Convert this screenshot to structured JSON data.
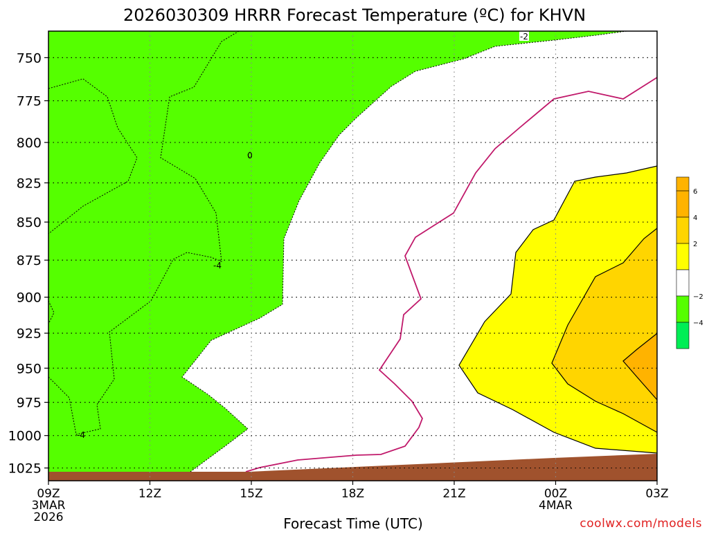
{
  "chart_data": {
    "type": "contour",
    "title": "2026030309 HRRR Forecast Temperature (ºC) for KHVN",
    "xlabel": "Forecast Time (UTC)",
    "ylabel": "",
    "y_log_pressure": true,
    "y_range": [
      1035,
      735
    ],
    "x_range_hours": [
      0,
      18
    ],
    "x_ticks": [
      {
        "hour": 0,
        "label": "09Z",
        "sub1": "3MAR",
        "sub2": "2026"
      },
      {
        "hour": 3,
        "label": "12Z",
        "sub1": "",
        "sub2": ""
      },
      {
        "hour": 6,
        "label": "15Z",
        "sub1": "",
        "sub2": ""
      },
      {
        "hour": 9,
        "label": "18Z",
        "sub1": "",
        "sub2": ""
      },
      {
        "hour": 12,
        "label": "21Z",
        "sub1": "",
        "sub2": ""
      },
      {
        "hour": 15,
        "label": "00Z",
        "sub1": "4MAR",
        "sub2": ""
      },
      {
        "hour": 18,
        "label": "03Z",
        "sub1": "",
        "sub2": ""
      }
    ],
    "y_ticks": [
      {
        "value": 750,
        "label": "750"
      },
      {
        "value": 775,
        "label": "775"
      },
      {
        "value": 800,
        "label": "800"
      },
      {
        "value": 825,
        "label": "825"
      },
      {
        "value": 850,
        "label": "850"
      },
      {
        "value": 875,
        "label": "875"
      },
      {
        "value": 900,
        "label": "900"
      },
      {
        "value": 925,
        "label": "925"
      },
      {
        "value": 950,
        "label": "950"
      },
      {
        "value": 975,
        "label": "975"
      },
      {
        "value": 1000,
        "label": "1000"
      },
      {
        "value": 1025,
        "label": "1025"
      }
    ],
    "grid": true,
    "contour_labels": [
      "-2",
      "0",
      "-4",
      "-4"
    ],
    "colorbar": {
      "levels": [
        {
          "label": "6",
          "color": "#ffb300"
        },
        {
          "label": "4",
          "color": "#ffd500"
        },
        {
          "label": "2",
          "color": "#ffff00"
        },
        {
          "label": "",
          "color": "#ffffff"
        },
        {
          "label": "−2",
          "color": "#55ff00"
        },
        {
          "label": "−4",
          "color": "#00ee55"
        }
      ],
      "top_color": "#ffb300"
    },
    "colors": {
      "cold_fill": "#55ff00",
      "neutral_fill": "#ffffff",
      "warm_fill": "#ffff00",
      "warmer_fill": "#ffd500",
      "warmest_fill": "#ffb300",
      "ground": "#a0522d",
      "freezing_line": "#c0186a"
    }
  },
  "credit": "coolwx.com/models"
}
